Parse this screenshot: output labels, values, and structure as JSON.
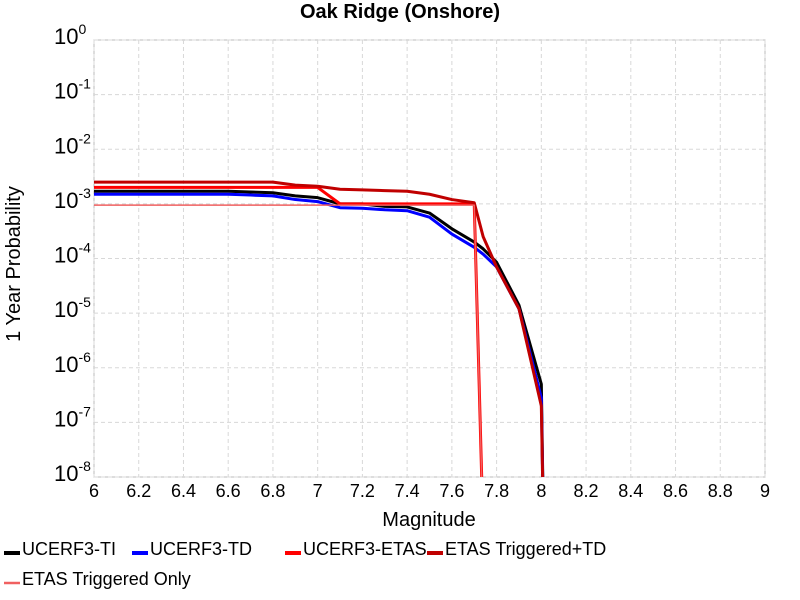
{
  "chart_data": {
    "type": "line",
    "title": "Oak Ridge (Onshore)",
    "x_label": "Magnitude",
    "y_label": "1 Year Probability",
    "x": [
      6.0,
      6.1,
      6.2,
      6.3,
      6.4,
      6.5,
      6.6,
      6.7,
      6.8,
      6.9,
      7.0,
      7.1,
      7.2,
      7.3,
      7.4,
      7.5,
      7.6,
      7.7,
      7.74,
      7.8,
      7.9,
      8.0,
      8.01
    ],
    "series": [
      {
        "name": "UCERF3-TI",
        "color": "#000000",
        "width": 3,
        "values": [
          0.0017,
          0.0017,
          0.0017,
          0.0017,
          0.0017,
          0.0017,
          0.0017,
          0.00165,
          0.0016,
          0.0014,
          0.0013,
          0.001,
          0.001,
          0.0009,
          0.00088,
          0.00068,
          0.00035,
          0.0002,
          0.00015,
          8.5e-05,
          1.4e-05,
          5e-07,
          1e-09
        ]
      },
      {
        "name": "UCERF3-TD",
        "color": "#0000ff",
        "width": 3,
        "values": [
          0.0015,
          0.0015,
          0.0015,
          0.0015,
          0.0015,
          0.0015,
          0.0015,
          0.00145,
          0.0014,
          0.0012,
          0.0011,
          0.00085,
          0.00083,
          0.00078,
          0.00075,
          0.00057,
          0.00028,
          0.00016,
          0.00012,
          7e-05,
          1.2e-05,
          2.8e-07,
          1e-09
        ]
      },
      {
        "name": "UCERF3-ETAS",
        "color": "#ff0000",
        "width": 3,
        "values": [
          0.002,
          0.002,
          0.002,
          0.002,
          0.002,
          0.002,
          0.002,
          0.002,
          0.002,
          0.002,
          0.002,
          0.001,
          0.001,
          0.001,
          0.001,
          0.001,
          0.001,
          0.001,
          1e-09,
          null,
          null,
          null,
          null
        ]
      },
      {
        "name": "ETAS Triggered+TD",
        "color": "#c00000",
        "width": 3,
        "values": [
          0.0025,
          0.0025,
          0.0025,
          0.0025,
          0.0025,
          0.0025,
          0.0025,
          0.0025,
          0.0025,
          0.0022,
          0.0021,
          0.00185,
          0.0018,
          0.00175,
          0.0017,
          0.0015,
          0.0012,
          0.00105,
          0.00025,
          7e-05,
          1.2e-05,
          2e-07,
          1e-09
        ]
      },
      {
        "name": "ETAS Triggered Only",
        "color": "#f06060",
        "width": 1.5,
        "values": [
          0.00095,
          0.00095,
          0.00095,
          0.00095,
          0.00095,
          0.00095,
          0.00095,
          0.00095,
          0.00095,
          0.00095,
          0.00095,
          0.00095,
          0.00095,
          0.00095,
          0.00095,
          0.00095,
          0.00095,
          0.00095,
          1e-09,
          null,
          null,
          null,
          null
        ]
      }
    ],
    "xlim": [
      6,
      9
    ],
    "xticks": [
      6,
      6.2,
      6.4,
      6.6,
      6.8,
      7,
      7.2,
      7.4,
      7.6,
      7.8,
      8,
      8.2,
      8.4,
      8.6,
      8.8,
      9
    ],
    "ylim": [
      1e-08,
      1
    ],
    "log_y": true,
    "grid": true,
    "yticks": [
      {
        "value": 1,
        "label": "10",
        "exponent": "0"
      },
      {
        "value": 0.1,
        "label": "10",
        "exponent": "-1"
      },
      {
        "value": 0.01,
        "label": "10",
        "exponent": "-2"
      },
      {
        "value": 0.001,
        "label": "10",
        "exponent": "-3"
      },
      {
        "value": 0.0001,
        "label": "10",
        "exponent": "-4"
      },
      {
        "value": 1e-05,
        "label": "10",
        "exponent": "-5"
      },
      {
        "value": 1e-06,
        "label": "10",
        "exponent": "-6"
      },
      {
        "value": 1e-07,
        "label": "10",
        "exponent": "-7"
      },
      {
        "value": 1e-08,
        "label": "10",
        "exponent": "-8"
      }
    ]
  }
}
